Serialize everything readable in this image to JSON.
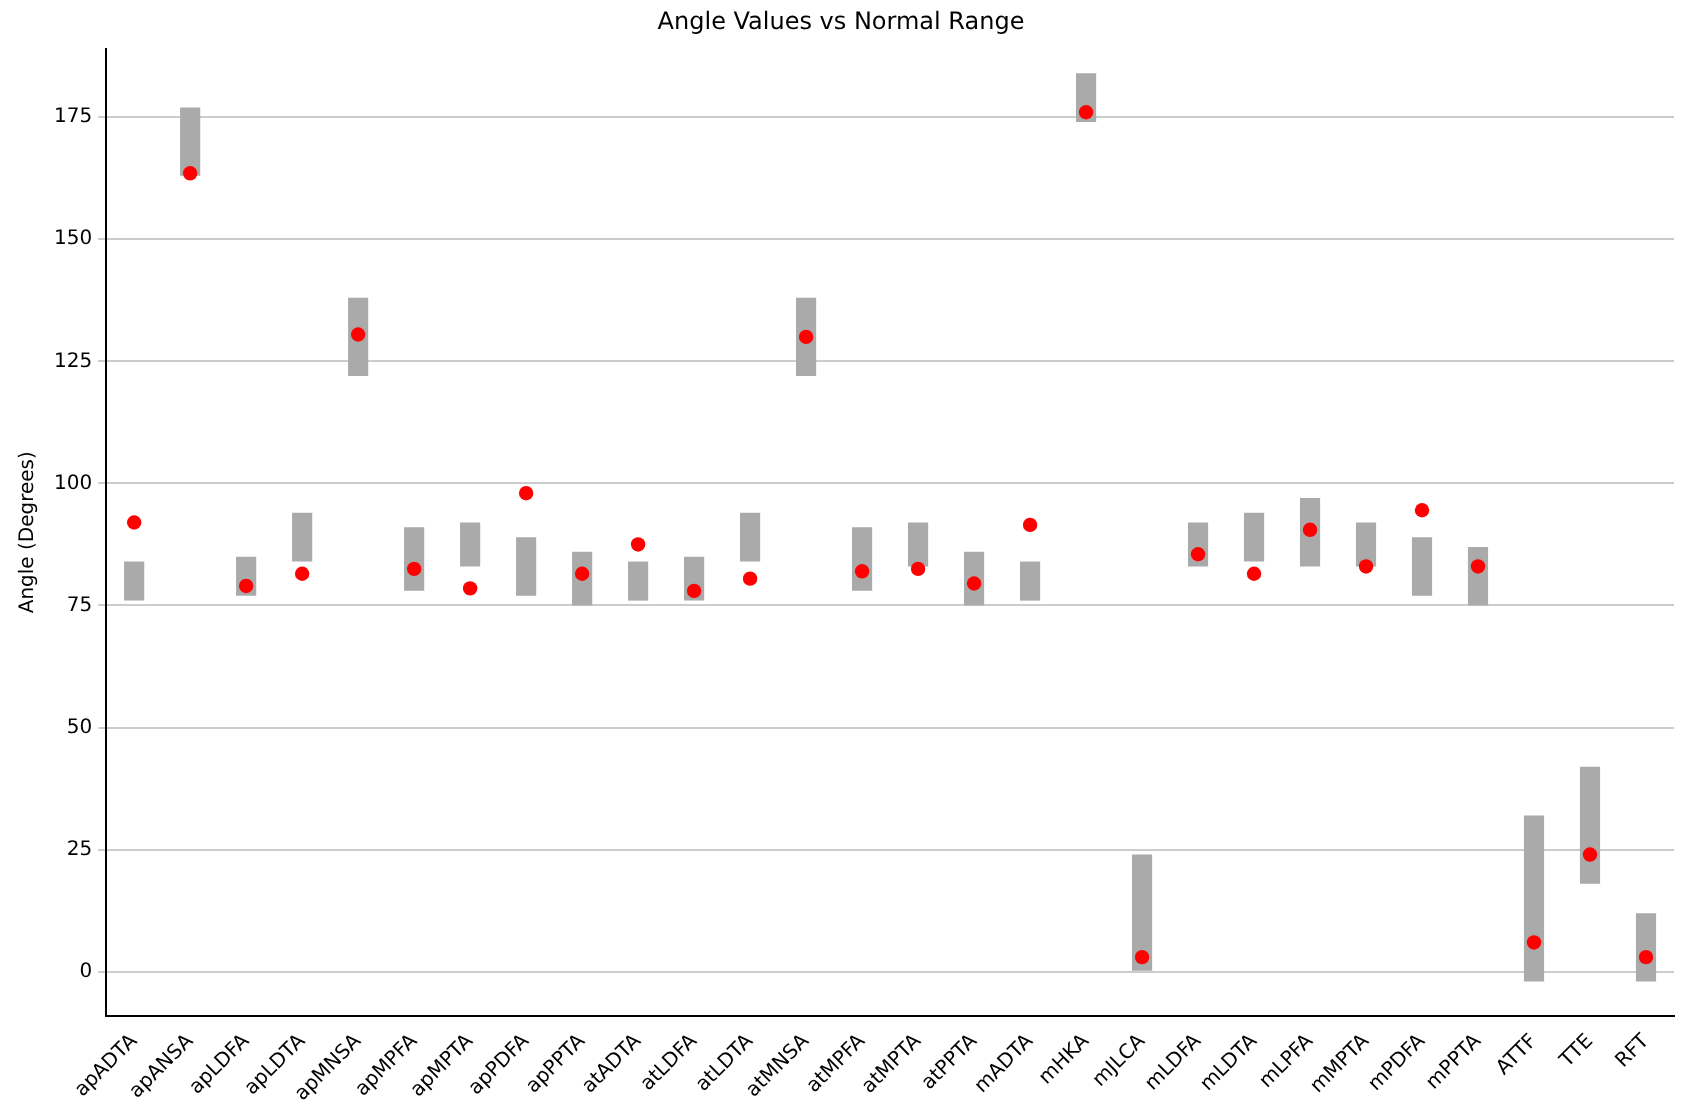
{
  "chart_data": {
    "type": "bar",
    "title": "Angle Values vs Normal Range",
    "ylabel": "Angle (Degrees)",
    "categories": [
      "apADTA",
      "apANSA",
      "apLDFA",
      "apLDTA",
      "apMNSA",
      "apMPFA",
      "apMPTA",
      "apPDFA",
      "apPPTA",
      "atADTA",
      "atLDFA",
      "atLDTA",
      "atMNSA",
      "atMPFA",
      "atMPTA",
      "atPPTA",
      "mADTA",
      "mHKA",
      "mJLCA",
      "mLDFA",
      "mLDTA",
      "mLPFA",
      "mMPTA",
      "mPDFA",
      "mPPTA",
      "ATTF",
      "TTE",
      "RFT"
    ],
    "series": [
      {
        "color": "#aaaaaa",
        "base": [
          76,
          163,
          77,
          84,
          122,
          78,
          83,
          77,
          75,
          76,
          76,
          84,
          122,
          78,
          83,
          75,
          76,
          174,
          0,
          83,
          84,
          83,
          83,
          77,
          75,
          -2,
          18,
          -2
        ],
        "values": [
          8,
          14,
          8,
          10,
          16,
          13,
          9,
          12,
          11,
          8,
          9,
          10,
          16,
          13,
          9,
          11,
          8,
          10,
          24,
          9,
          10,
          14,
          9,
          12,
          12,
          34,
          24,
          14
        ]
      },
      {
        "type": "scatter",
        "color": "#ff0000",
        "x": [
          "apADTA",
          "apANSA",
          "apLDFA",
          "apLDTA",
          "apMNSA",
          "apMPFA",
          "apMPTA",
          "apPDFA",
          "apPPTA",
          "atADTA",
          "atLDFA",
          "atLDTA",
          "atMNSA",
          "atMPFA",
          "atMPTA",
          "atPPTA",
          "mADTA",
          "mHKA",
          "mJLCA",
          "mLDFA",
          "mLDTA",
          "mLPFA",
          "mMPTA",
          "mPDFA",
          "mPPTA",
          "ATTF",
          "TTE",
          "RFT"
        ],
        "values": [
          92,
          163.5,
          79,
          81.5,
          130.5,
          82.5,
          78.5,
          98,
          81.5,
          87.5,
          78,
          80.5,
          130,
          82,
          82.5,
          79.5,
          91.5,
          176,
          3,
          85.5,
          81.5,
          90.5,
          83,
          94.5,
          83,
          6,
          24,
          3
        ]
      }
    ],
    "ylim": [
      -9,
      189
    ],
    "yticks": [
      0,
      25,
      50,
      75,
      100,
      125,
      150,
      175
    ],
    "grid": "y",
    "legend": false,
    "marker": "circle"
  }
}
